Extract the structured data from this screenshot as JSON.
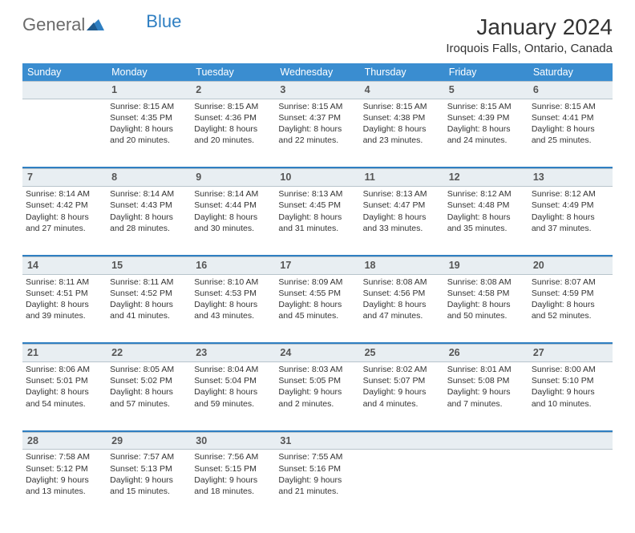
{
  "brand": {
    "part1": "General",
    "part2": "Blue"
  },
  "title": "January 2024",
  "location": "Iroquois Falls, Ontario, Canada",
  "colors": {
    "header_bg": "#3a8dd0",
    "header_text": "#ffffff",
    "daynum_bg": "#e8eef2",
    "border": "#b8c4cc",
    "accent": "#2f7fc2",
    "text": "#333333",
    "logo_gray": "#6b6b6b"
  },
  "weekdays": [
    "Sunday",
    "Monday",
    "Tuesday",
    "Wednesday",
    "Thursday",
    "Friday",
    "Saturday"
  ],
  "weeks": [
    [
      {
        "num": "",
        "text": ""
      },
      {
        "num": "1",
        "text": "Sunrise: 8:15 AM\nSunset: 4:35 PM\nDaylight: 8 hours and 20 minutes."
      },
      {
        "num": "2",
        "text": "Sunrise: 8:15 AM\nSunset: 4:36 PM\nDaylight: 8 hours and 20 minutes."
      },
      {
        "num": "3",
        "text": "Sunrise: 8:15 AM\nSunset: 4:37 PM\nDaylight: 8 hours and 22 minutes."
      },
      {
        "num": "4",
        "text": "Sunrise: 8:15 AM\nSunset: 4:38 PM\nDaylight: 8 hours and 23 minutes."
      },
      {
        "num": "5",
        "text": "Sunrise: 8:15 AM\nSunset: 4:39 PM\nDaylight: 8 hours and 24 minutes."
      },
      {
        "num": "6",
        "text": "Sunrise: 8:15 AM\nSunset: 4:41 PM\nDaylight: 8 hours and 25 minutes."
      }
    ],
    [
      {
        "num": "7",
        "text": "Sunrise: 8:14 AM\nSunset: 4:42 PM\nDaylight: 8 hours and 27 minutes."
      },
      {
        "num": "8",
        "text": "Sunrise: 8:14 AM\nSunset: 4:43 PM\nDaylight: 8 hours and 28 minutes."
      },
      {
        "num": "9",
        "text": "Sunrise: 8:14 AM\nSunset: 4:44 PM\nDaylight: 8 hours and 30 minutes."
      },
      {
        "num": "10",
        "text": "Sunrise: 8:13 AM\nSunset: 4:45 PM\nDaylight: 8 hours and 31 minutes."
      },
      {
        "num": "11",
        "text": "Sunrise: 8:13 AM\nSunset: 4:47 PM\nDaylight: 8 hours and 33 minutes."
      },
      {
        "num": "12",
        "text": "Sunrise: 8:12 AM\nSunset: 4:48 PM\nDaylight: 8 hours and 35 minutes."
      },
      {
        "num": "13",
        "text": "Sunrise: 8:12 AM\nSunset: 4:49 PM\nDaylight: 8 hours and 37 minutes."
      }
    ],
    [
      {
        "num": "14",
        "text": "Sunrise: 8:11 AM\nSunset: 4:51 PM\nDaylight: 8 hours and 39 minutes."
      },
      {
        "num": "15",
        "text": "Sunrise: 8:11 AM\nSunset: 4:52 PM\nDaylight: 8 hours and 41 minutes."
      },
      {
        "num": "16",
        "text": "Sunrise: 8:10 AM\nSunset: 4:53 PM\nDaylight: 8 hours and 43 minutes."
      },
      {
        "num": "17",
        "text": "Sunrise: 8:09 AM\nSunset: 4:55 PM\nDaylight: 8 hours and 45 minutes."
      },
      {
        "num": "18",
        "text": "Sunrise: 8:08 AM\nSunset: 4:56 PM\nDaylight: 8 hours and 47 minutes."
      },
      {
        "num": "19",
        "text": "Sunrise: 8:08 AM\nSunset: 4:58 PM\nDaylight: 8 hours and 50 minutes."
      },
      {
        "num": "20",
        "text": "Sunrise: 8:07 AM\nSunset: 4:59 PM\nDaylight: 8 hours and 52 minutes."
      }
    ],
    [
      {
        "num": "21",
        "text": "Sunrise: 8:06 AM\nSunset: 5:01 PM\nDaylight: 8 hours and 54 minutes."
      },
      {
        "num": "22",
        "text": "Sunrise: 8:05 AM\nSunset: 5:02 PM\nDaylight: 8 hours and 57 minutes."
      },
      {
        "num": "23",
        "text": "Sunrise: 8:04 AM\nSunset: 5:04 PM\nDaylight: 8 hours and 59 minutes."
      },
      {
        "num": "24",
        "text": "Sunrise: 8:03 AM\nSunset: 5:05 PM\nDaylight: 9 hours and 2 minutes."
      },
      {
        "num": "25",
        "text": "Sunrise: 8:02 AM\nSunset: 5:07 PM\nDaylight: 9 hours and 4 minutes."
      },
      {
        "num": "26",
        "text": "Sunrise: 8:01 AM\nSunset: 5:08 PM\nDaylight: 9 hours and 7 minutes."
      },
      {
        "num": "27",
        "text": "Sunrise: 8:00 AM\nSunset: 5:10 PM\nDaylight: 9 hours and 10 minutes."
      }
    ],
    [
      {
        "num": "28",
        "text": "Sunrise: 7:58 AM\nSunset: 5:12 PM\nDaylight: 9 hours and 13 minutes."
      },
      {
        "num": "29",
        "text": "Sunrise: 7:57 AM\nSunset: 5:13 PM\nDaylight: 9 hours and 15 minutes."
      },
      {
        "num": "30",
        "text": "Sunrise: 7:56 AM\nSunset: 5:15 PM\nDaylight: 9 hours and 18 minutes."
      },
      {
        "num": "31",
        "text": "Sunrise: 7:55 AM\nSunset: 5:16 PM\nDaylight: 9 hours and 21 minutes."
      },
      {
        "num": "",
        "text": ""
      },
      {
        "num": "",
        "text": ""
      },
      {
        "num": "",
        "text": ""
      }
    ]
  ]
}
